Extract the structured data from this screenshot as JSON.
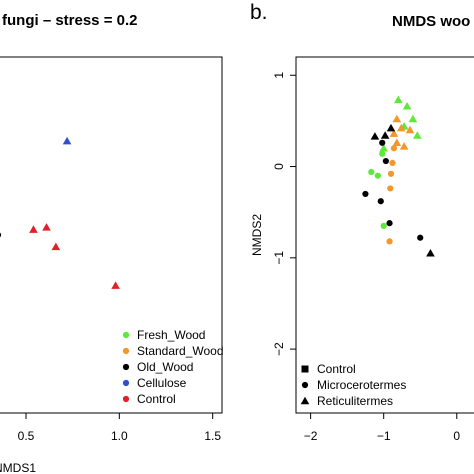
{
  "chart_data": [
    {
      "panel": "",
      "type": "scatter",
      "title": "fungi – stress = 0.2",
      "xlabel": "NMDS1",
      "ylabel": "",
      "x_ticks": [
        "0.5",
        "1.0",
        "1.5"
      ],
      "xlim": [
        0.35,
        1.55
      ],
      "ylim": [
        -1.6,
        1.7
      ],
      "legend": {
        "placement": "bottom-right",
        "entries": [
          {
            "label": "Fresh_Wood",
            "color": "#5ee83a"
          },
          {
            "label": "Standard_Wood",
            "color": "#f2972b"
          },
          {
            "label": "Old_Wood",
            "color": "#000000"
          },
          {
            "label": "Cellulose",
            "color": "#2f4ed0"
          },
          {
            "label": "Control",
            "color": "#e0202a"
          }
        ]
      },
      "series": [
        {
          "group": "Cellulose",
          "marker": "triangle",
          "color": "#2f4ed0",
          "points": [
            [
              0.72,
              0.92
            ]
          ]
        },
        {
          "group": "Old_Wood",
          "marker": "circle",
          "color": "#000000",
          "points": [
            [
              0.35,
              0.05
            ]
          ]
        },
        {
          "group": "Control",
          "marker": "triangle",
          "color": "#e0202a",
          "points": [
            [
              0.54,
              0.1
            ],
            [
              0.61,
              0.12
            ],
            [
              0.66,
              -0.06
            ],
            [
              0.98,
              -0.42
            ]
          ]
        }
      ]
    },
    {
      "panel": "b.",
      "type": "scatter",
      "title": "NMDS woo",
      "xlabel": "",
      "ylabel": "NMDS2",
      "x_ticks": [
        "-2",
        "-1",
        "0"
      ],
      "y_ticks": [
        "-2",
        "-1",
        "0",
        "1"
      ],
      "xlim": [
        -2.2,
        0.4
      ],
      "ylim": [
        -2.7,
        1.2
      ],
      "legend": {
        "placement": "bottom-left",
        "entries": [
          {
            "label": "Control",
            "marker": "square"
          },
          {
            "label": "Microcerotermes",
            "marker": "circle"
          },
          {
            "label": "Reticulitermes",
            "marker": "triangle"
          }
        ]
      },
      "series": [
        {
          "group": "Fresh_Wood",
          "marker": "triangle",
          "color": "#5ee83a",
          "points": [
            [
              -0.8,
              0.73
            ],
            [
              -0.68,
              0.66
            ],
            [
              -0.6,
              0.52
            ],
            [
              -0.72,
              0.44
            ],
            [
              -0.54,
              0.34
            ],
            [
              -1.0,
              0.2
            ]
          ]
        },
        {
          "group": "Fresh_Wood",
          "marker": "circle",
          "color": "#5ee83a",
          "points": [
            [
              -1.02,
              0.14
            ],
            [
              -1.17,
              -0.06
            ],
            [
              -1.08,
              -0.1
            ],
            [
              -1.0,
              -0.65
            ]
          ]
        },
        {
          "group": "Standard_Wood",
          "marker": "triangle",
          "color": "#f2972b",
          "points": [
            [
              -0.82,
              0.52
            ],
            [
              -0.76,
              0.42
            ],
            [
              -0.86,
              0.36
            ],
            [
              -0.64,
              0.4
            ],
            [
              -0.82,
              0.26
            ],
            [
              -0.72,
              0.22
            ]
          ]
        },
        {
          "group": "Standard_Wood",
          "marker": "circle",
          "color": "#f2972b",
          "points": [
            [
              -0.86,
              0.2
            ],
            [
              -0.88,
              0.04
            ],
            [
              -0.9,
              -0.08
            ],
            [
              -0.91,
              -0.24
            ],
            [
              -0.92,
              -0.82
            ]
          ]
        },
        {
          "group": "Old_Wood",
          "marker": "triangle",
          "color": "#000000",
          "points": [
            [
              -1.12,
              0.33
            ],
            [
              -0.98,
              0.34
            ],
            [
              -0.9,
              0.42
            ],
            [
              -0.36,
              -0.95
            ]
          ]
        },
        {
          "group": "Old_Wood",
          "marker": "circle",
          "color": "#000000",
          "points": [
            [
              -1.02,
              0.26
            ],
            [
              -0.97,
              0.06
            ],
            [
              -1.04,
              -0.38
            ],
            [
              -1.25,
              -0.3
            ],
            [
              -0.92,
              -0.62
            ],
            [
              -0.5,
              -0.78
            ]
          ]
        }
      ]
    }
  ]
}
